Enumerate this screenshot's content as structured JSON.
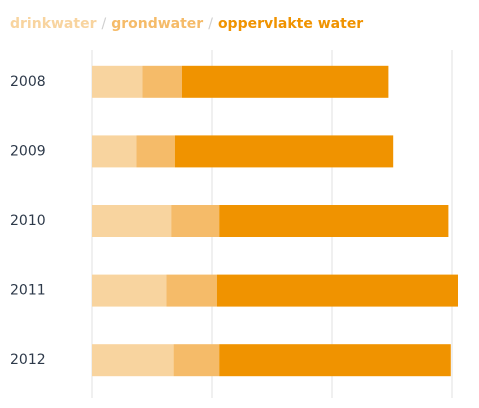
{
  "chart_data": {
    "type": "stacked-bar-horizontal",
    "separator": "/",
    "categories": [
      "2008",
      "2009",
      "2010",
      "2011",
      "2012"
    ],
    "series": [
      {
        "name": "drinkwater",
        "color": "#f8d49f",
        "values": [
          42,
          37,
          66,
          62,
          68
        ]
      },
      {
        "name": "grondwater",
        "color": "#f5bb69",
        "values": [
          33,
          32,
          40,
          42,
          38
        ]
      },
      {
        "name": "oppervlakte water",
        "color": "#f09300",
        "values": [
          172,
          182,
          191,
          201,
          193
        ]
      }
    ],
    "xlim": [
      0,
      320
    ],
    "xticks": [
      0,
      100,
      200,
      300
    ],
    "grid": true
  }
}
